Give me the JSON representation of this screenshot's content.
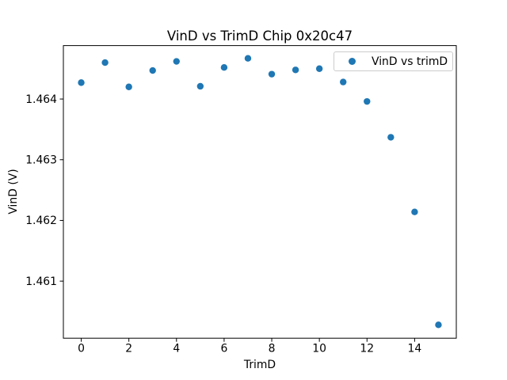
{
  "figure": {
    "colors": {
      "marker": "#1f77b4",
      "spine": "#000000",
      "tick": "#000000",
      "text": "#000000",
      "legend_border": "#cccccc",
      "background": "#ffffff"
    }
  },
  "chart_data": {
    "type": "scatter",
    "title": "VinD vs TrimD Chip 0x20c47",
    "xlabel": "TrimD",
    "ylabel": "VinD (V)",
    "legend_entries": [
      "VinD vs trimD"
    ],
    "legend_position": "upper right",
    "marker": "circle",
    "marker_color": "#1f77b4",
    "grid": false,
    "x": [
      0,
      1,
      2,
      3,
      4,
      5,
      6,
      7,
      8,
      9,
      10,
      11,
      12,
      13,
      14,
      15
    ],
    "y": [
      1.46427,
      1.4646,
      1.4642,
      1.46447,
      1.46462,
      1.46421,
      1.46452,
      1.46467,
      1.46441,
      1.46448,
      1.4645,
      1.46428,
      1.46396,
      1.46337,
      1.46214,
      1.46028
    ],
    "xlim": [
      -0.75,
      15.75
    ],
    "ylim": [
      1.46006,
      1.46488
    ],
    "xticks": [
      0,
      2,
      4,
      6,
      8,
      10,
      12,
      14
    ],
    "xtick_labels": [
      "0",
      "2",
      "4",
      "6",
      "8",
      "10",
      "12",
      "14"
    ],
    "yticks": [
      1.461,
      1.462,
      1.463,
      1.464
    ],
    "ytick_labels": [
      "1.461",
      "1.462",
      "1.463",
      "1.464"
    ]
  }
}
